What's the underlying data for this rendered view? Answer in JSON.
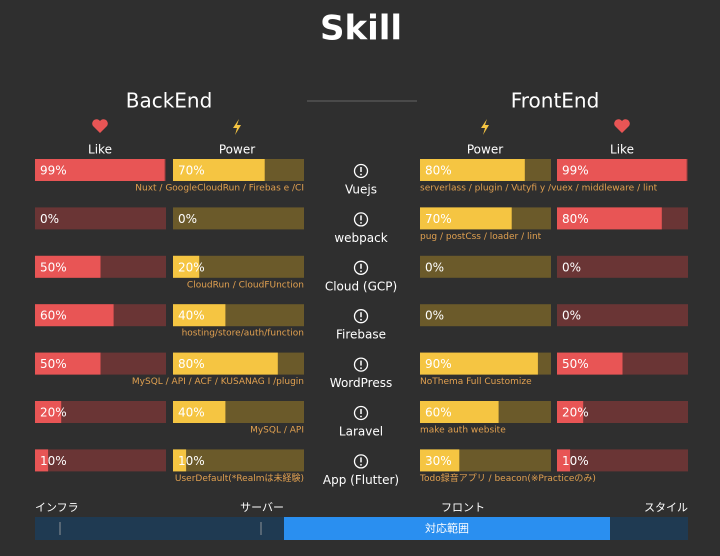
{
  "title": "Skill",
  "backend": {
    "title": "BackEnd",
    "like_label": "Like",
    "power_label": "Power"
  },
  "frontend": {
    "title": "FrontEnd",
    "like_label": "Like",
    "power_label": "Power"
  },
  "skills": [
    {
      "name": "Vuejs",
      "backend": {
        "like": 99,
        "like_label": "99%",
        "power": 70,
        "power_label": "70%",
        "note": "Nuxt / GoogleCloudRun / Firebas e /CI"
      },
      "frontend": {
        "power": 80,
        "power_label": "80%",
        "like": 99,
        "like_label": "99%",
        "note": "serverlass / plugin / Vutyfi y /vuex / middleware / lint"
      }
    },
    {
      "name": "webpack",
      "backend": {
        "like": 0,
        "like_label": "0%",
        "power": 0,
        "power_label": "0%"
      },
      "frontend": {
        "power": 70,
        "power_label": "70%",
        "like": 80,
        "like_label": "80%",
        "note": "pug / postCss / loader / lint"
      }
    },
    {
      "name": "Cloud (GCP)",
      "backend": {
        "like": 50,
        "like_label": "50%",
        "power": 20,
        "power_label": "20%",
        "note": "CloudRun / CloudFUnction"
      },
      "frontend": {
        "power": 0,
        "power_label": "0%",
        "like": 0,
        "like_label": "0%"
      }
    },
    {
      "name": "Firebase",
      "backend": {
        "like": 60,
        "like_label": "60%",
        "power": 40,
        "power_label": "40%",
        "note": "hosting/store/auth/function"
      },
      "frontend": {
        "power": 0,
        "power_label": "0%",
        "like": 0,
        "like_label": "0%"
      }
    },
    {
      "name": "WordPress",
      "backend": {
        "like": 50,
        "like_label": "50%",
        "power": 80,
        "power_label": "80%",
        "note": "MySQL / API / ACF / KUSANAG I /plugin"
      },
      "frontend": {
        "power": 90,
        "power_label": "90%",
        "like": 50,
        "like_label": "50%",
        "note": "NoThema Full Customize"
      }
    },
    {
      "name": "Laravel",
      "backend": {
        "like": 20,
        "like_label": "20%",
        "power": 40,
        "power_label": "40%",
        "note": "MySQL / API"
      },
      "frontend": {
        "power": 60,
        "power_label": "60%",
        "like": 20,
        "like_label": "20%",
        "note": "make auth website"
      }
    },
    {
      "name": "App (Flutter)",
      "backend": {
        "like": 10,
        "like_label": "10%",
        "power": 10,
        "power_label": "10%",
        "note": "UserDefault(*Realmは未経験)"
      },
      "frontend": {
        "power": 30,
        "power_label": "30%",
        "like": 10,
        "like_label": "10%",
        "note": "Todo録音アプリ / beacon(※Practiceのみ)"
      }
    }
  ],
  "scope": {
    "labels": [
      "インフラ",
      "サーバー",
      "フロント",
      "スタイル"
    ],
    "range_label": "対応範囲"
  }
}
